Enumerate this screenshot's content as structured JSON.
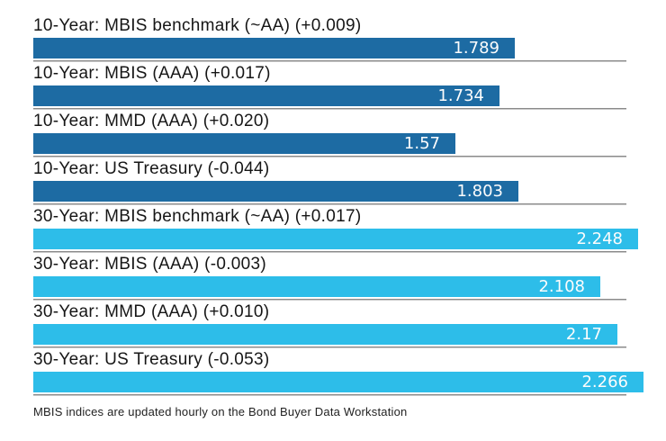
{
  "chart_data": {
    "type": "bar",
    "orientation": "horizontal",
    "legend": "none",
    "grid": "per-row gray baseline under each bar",
    "xlim": [
      0,
      2.2
    ],
    "colors": {
      "ten_year_bar": "#1d6ba3",
      "thirty_year_bar": "#2dbde9",
      "baseline_gray": "#8a8a8a",
      "value_text": "#fcfcfc",
      "label_text": "#161616"
    },
    "rows": [
      {
        "label": "10-Year: MBIS benchmark (~AA) (+0.009)",
        "value": 1.789,
        "display": "1.789",
        "group": "10-year"
      },
      {
        "label": "10-Year: MBIS (AAA) (+0.017)",
        "value": 1.734,
        "display": "1.734",
        "group": "10-year"
      },
      {
        "label": "10-Year: MMD (AAA) (+0.020)",
        "value": 1.57,
        "display": "1.57",
        "group": "10-year"
      },
      {
        "label": "10-Year: US Treasury (-0.044)",
        "value": 1.803,
        "display": "1.803",
        "group": "10-year"
      },
      {
        "label": "30-Year: MBIS benchmark (~AA) (+0.017)",
        "value": 2.248,
        "display": "2.248",
        "group": "30-year"
      },
      {
        "label": "30-Year: MBIS (AAA) (-0.003)",
        "value": 2.108,
        "display": "2.108",
        "group": "30-year"
      },
      {
        "label": "30-Year: MMD (AAA) (+0.010)",
        "value": 2.17,
        "display": "2.17",
        "group": "30-year"
      },
      {
        "label": "30-Year: US Treasury (-0.053)",
        "value": 2.266,
        "display": "2.266",
        "group": "30-year"
      }
    ]
  },
  "footer": {
    "note": "MBIS indices are updated hourly on the Bond Buyer Data Workstation"
  }
}
